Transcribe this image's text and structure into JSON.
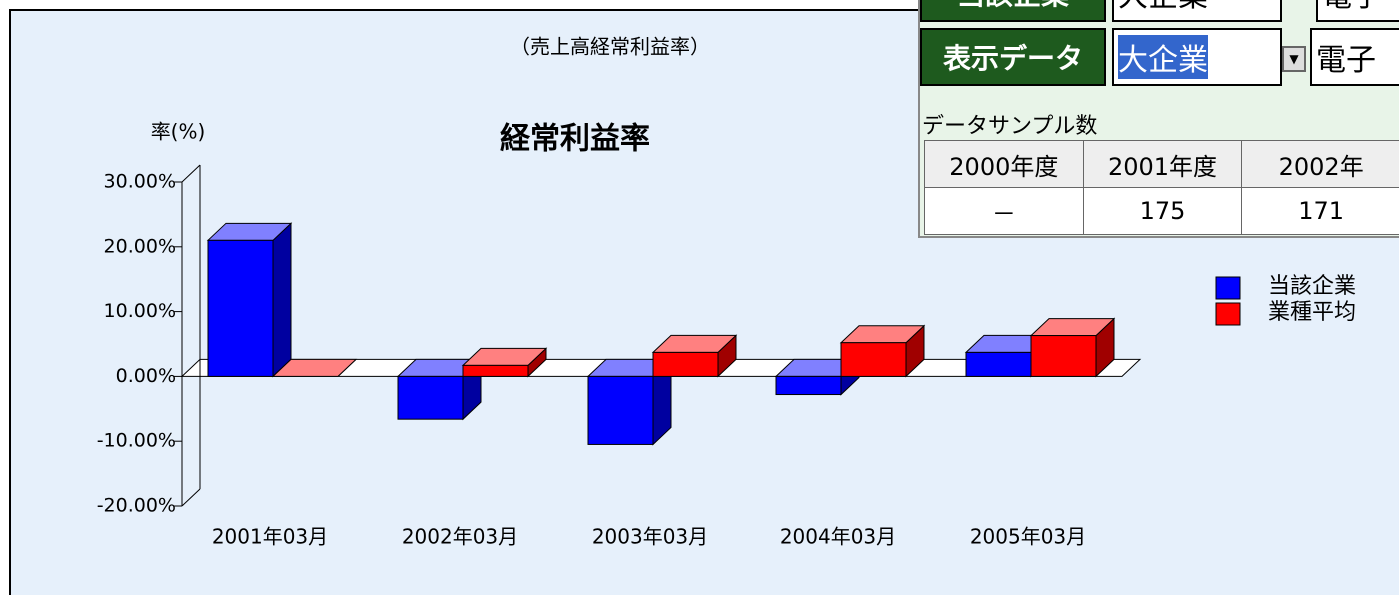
{
  "chart_data": {
    "type": "bar3d",
    "title": "経常利益率",
    "subtitle": "（売上高経常利益率）",
    "y_label": "率(%)",
    "categories": [
      "2001年03月",
      "2002年03月",
      "2003年03月",
      "2004年03月",
      "2005年03月"
    ],
    "series": [
      {
        "name": "当該企業",
        "color": "#0000ff",
        "values": [
          21,
          -6.6,
          -10.5,
          -2.8,
          3.7
        ]
      },
      {
        "name": "業種平均",
        "color": "#ff0000",
        "values": [
          0,
          1.7,
          3.7,
          5.2,
          6.3
        ]
      }
    ],
    "ylim": [
      -20,
      30
    ],
    "yticks": [
      {
        "value": -20,
        "label": "-20.00%"
      },
      {
        "value": -10,
        "label": "-10.00%"
      },
      {
        "value": 0,
        "label": "0.00%"
      },
      {
        "value": 10,
        "label": "10.00%"
      },
      {
        "value": 20,
        "label": "20.00%"
      },
      {
        "value": 30,
        "label": "30.00%"
      }
    ],
    "legend": "right"
  },
  "panel": {
    "rows": [
      {
        "label": "当該企業",
        "value": "大企業",
        "extra": "電子"
      },
      {
        "label": "表示データ",
        "value": "大企業",
        "extra": "電子"
      }
    ],
    "sample_label": "データサンプル数",
    "table": {
      "header": [
        "2000年度",
        "2001年度",
        "2002年"
      ],
      "rows": [
        [
          "－",
          "175",
          "171"
        ]
      ]
    }
  }
}
